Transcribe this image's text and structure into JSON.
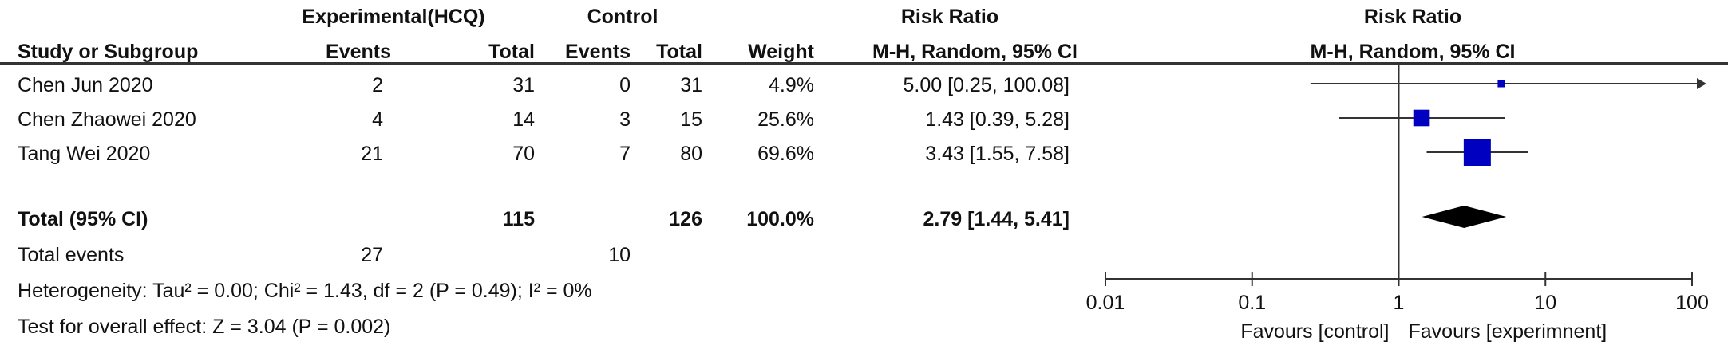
{
  "header": {
    "group_experimental": "Experimental(HCQ)",
    "group_control": "Control",
    "risk_ratio": "Risk Ratio",
    "study_col": "Study or Subgroup",
    "events": "Events",
    "total": "Total",
    "weight": "Weight",
    "method": "M-H, Random, 95% CI",
    "plot_title": "Risk Ratio",
    "plot_method": "M-H, Random, 95% CI"
  },
  "studies": [
    {
      "name": "Chen Jun 2020",
      "e_events": "2",
      "e_total": "31",
      "c_events": "0",
      "c_total": "31",
      "weight": "4.9%",
      "ci_text": "5.00 [0.25, 100.08]"
    },
    {
      "name": "Chen Zhaowei 2020",
      "e_events": "4",
      "e_total": "14",
      "c_events": "3",
      "c_total": "15",
      "weight": "25.6%",
      "ci_text": "1.43 [0.39, 5.28]"
    },
    {
      "name": "Tang Wei 2020",
      "e_events": "21",
      "e_total": "70",
      "c_events": "7",
      "c_total": "80",
      "weight": "69.6%",
      "ci_text": "3.43 [1.55, 7.58]"
    }
  ],
  "total": {
    "label": "Total (95% CI)",
    "e_total": "115",
    "c_total": "126",
    "weight": "100.0%",
    "ci_text": "2.79 [1.44, 5.41]"
  },
  "total_events": {
    "label": "Total events",
    "e_events": "27",
    "c_events": "10"
  },
  "heterogeneity": "Heterogeneity: Tau² = 0.00; Chi² = 1.43, df = 2 (P = 0.49); I² = 0%",
  "overall_effect": "Test for overall effect: Z = 3.04 (P = 0.002)",
  "chart_data": {
    "type": "scatter",
    "x_scale": "log",
    "xlim": [
      0.01,
      100
    ],
    "ticks": [
      "0.01",
      "0.1",
      "1",
      "10",
      "100"
    ],
    "tick_values": [
      0.01,
      0.1,
      1,
      10,
      100
    ],
    "reference_line": 1,
    "favours_left": "Favours [control]",
    "favours_right": "Favours [experimnent]",
    "studies": [
      {
        "rr": 5.0,
        "lower": 0.25,
        "upper": 100.08,
        "weight": 4.9,
        "arrow_right": true
      },
      {
        "rr": 1.43,
        "lower": 0.39,
        "upper": 5.28,
        "weight": 25.6
      },
      {
        "rr": 3.43,
        "lower": 1.55,
        "upper": 7.58,
        "weight": 69.6
      }
    ],
    "pooled": {
      "rr": 2.79,
      "lower": 1.44,
      "upper": 5.41
    },
    "colors": {
      "marker": "#0000c0",
      "diamond": "#000000",
      "line": "#333333"
    }
  }
}
